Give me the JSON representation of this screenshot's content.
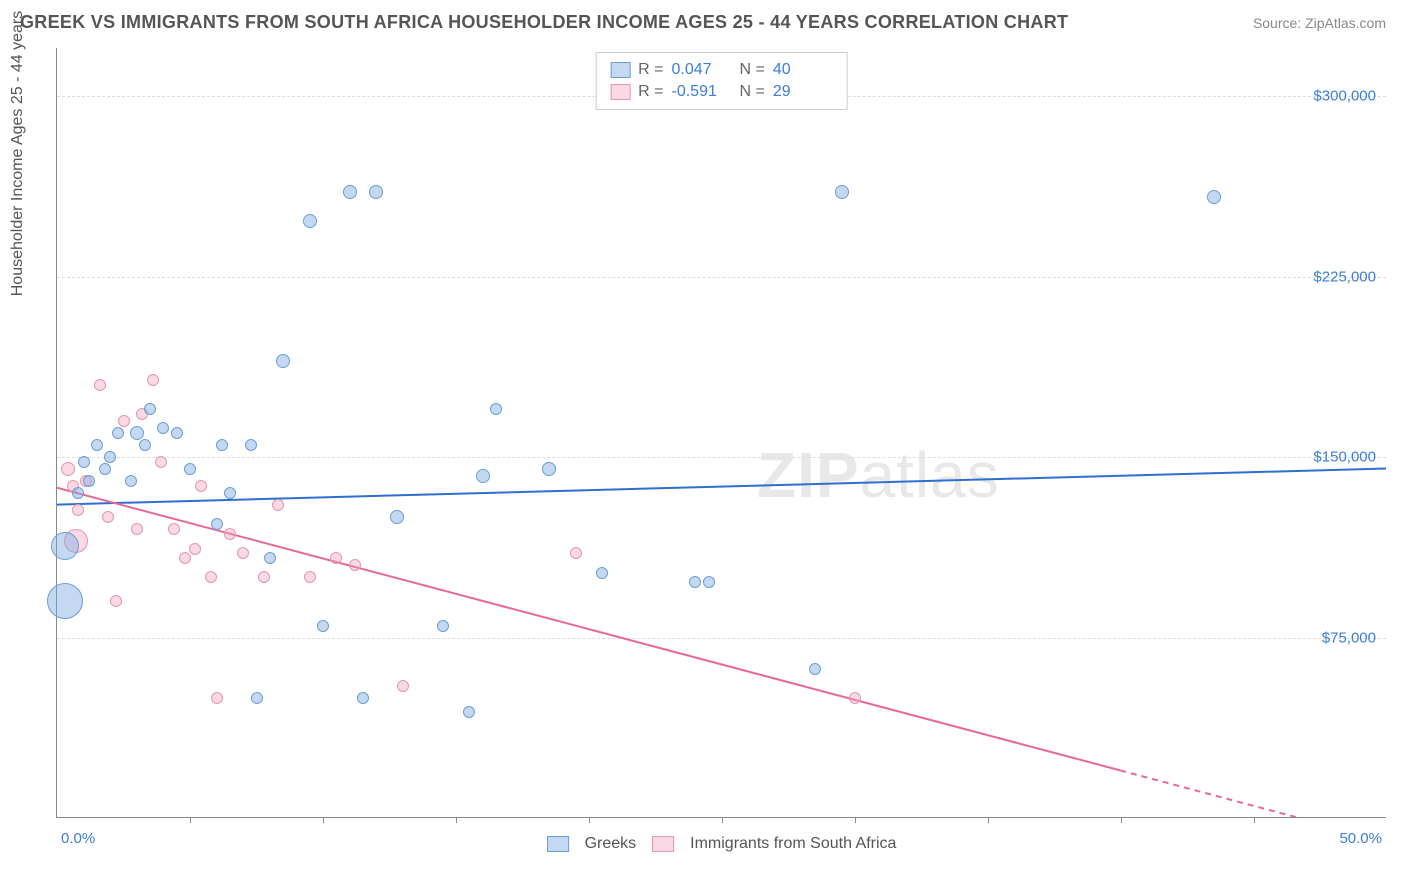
{
  "header": {
    "title": "GREEK VS IMMIGRANTS FROM SOUTH AFRICA HOUSEHOLDER INCOME AGES 25 - 44 YEARS CORRELATION CHART",
    "source": "Source: ZipAtlas.com"
  },
  "chart": {
    "type": "scatter",
    "ylabel": "Householder Income Ages 25 - 44 years",
    "watermark": {
      "bold": "ZIP",
      "rest": "atlas"
    },
    "background_color": "#ffffff",
    "grid_color": "#dddddd",
    "axis_color": "#888888",
    "tick_label_color": "#3b7dd8",
    "xlim": [
      0,
      50
    ],
    "ylim": [
      0,
      320000
    ],
    "y_ticks": [
      {
        "v": 75000,
        "label": "$75,000"
      },
      {
        "v": 150000,
        "label": "$150,000"
      },
      {
        "v": 225000,
        "label": "$225,000"
      },
      {
        "v": 300000,
        "label": "$300,000"
      }
    ],
    "x_axis_labels": {
      "left": "0.0%",
      "right": "50.0%"
    },
    "x_tick_positions": [
      5,
      10,
      15,
      20,
      25,
      30,
      35,
      40,
      45
    ],
    "series": {
      "blue": {
        "name": "Greeks",
        "fill": "rgba(125,170,225,0.45)",
        "stroke": "#6a9fd4",
        "line_color": "#2e6fd1",
        "line_width": 2,
        "R": "0.047",
        "N": "40",
        "trend": {
          "y_at_x0": 130000,
          "y_at_xmax": 145000
        },
        "points": [
          {
            "x": 0.3,
            "y": 90000,
            "r": 18
          },
          {
            "x": 0.3,
            "y": 113000,
            "r": 14
          },
          {
            "x": 0.8,
            "y": 135000,
            "r": 6
          },
          {
            "x": 1.0,
            "y": 148000,
            "r": 6
          },
          {
            "x": 1.2,
            "y": 140000,
            "r": 6
          },
          {
            "x": 1.5,
            "y": 155000,
            "r": 6
          },
          {
            "x": 1.8,
            "y": 145000,
            "r": 6
          },
          {
            "x": 2.0,
            "y": 150000,
            "r": 6
          },
          {
            "x": 2.3,
            "y": 160000,
            "r": 6
          },
          {
            "x": 2.8,
            "y": 140000,
            "r": 6
          },
          {
            "x": 3.0,
            "y": 160000,
            "r": 7
          },
          {
            "x": 3.3,
            "y": 155000,
            "r": 6
          },
          {
            "x": 3.5,
            "y": 170000,
            "r": 6
          },
          {
            "x": 4.0,
            "y": 162000,
            "r": 6
          },
          {
            "x": 4.5,
            "y": 160000,
            "r": 6
          },
          {
            "x": 5.0,
            "y": 145000,
            "r": 6
          },
          {
            "x": 6.0,
            "y": 122000,
            "r": 6
          },
          {
            "x": 6.2,
            "y": 155000,
            "r": 6
          },
          {
            "x": 6.5,
            "y": 135000,
            "r": 6
          },
          {
            "x": 7.3,
            "y": 155000,
            "r": 6
          },
          {
            "x": 7.5,
            "y": 50000,
            "r": 6
          },
          {
            "x": 8.0,
            "y": 108000,
            "r": 6
          },
          {
            "x": 8.5,
            "y": 190000,
            "r": 7
          },
          {
            "x": 9.5,
            "y": 248000,
            "r": 7
          },
          {
            "x": 10.0,
            "y": 80000,
            "r": 6
          },
          {
            "x": 11.0,
            "y": 260000,
            "r": 7
          },
          {
            "x": 11.5,
            "y": 50000,
            "r": 6
          },
          {
            "x": 12.0,
            "y": 260000,
            "r": 7
          },
          {
            "x": 12.8,
            "y": 125000,
            "r": 7
          },
          {
            "x": 14.5,
            "y": 80000,
            "r": 6
          },
          {
            "x": 15.5,
            "y": 44000,
            "r": 6
          },
          {
            "x": 16.0,
            "y": 142000,
            "r": 7
          },
          {
            "x": 16.5,
            "y": 170000,
            "r": 6
          },
          {
            "x": 18.5,
            "y": 145000,
            "r": 7
          },
          {
            "x": 20.5,
            "y": 102000,
            "r": 6
          },
          {
            "x": 24.0,
            "y": 98000,
            "r": 6
          },
          {
            "x": 24.5,
            "y": 98000,
            "r": 6
          },
          {
            "x": 28.5,
            "y": 62000,
            "r": 6
          },
          {
            "x": 29.5,
            "y": 260000,
            "r": 7
          },
          {
            "x": 43.5,
            "y": 258000,
            "r": 7
          }
        ]
      },
      "pink": {
        "name": "Immigrants from South Africa",
        "fill": "rgba(240,160,185,0.40)",
        "stroke": "#e895af",
        "line_color": "#e86a93",
        "line_width": 2,
        "R": "-0.591",
        "N": "29",
        "trend": {
          "y_at_x0": 137000,
          "y_at_xmax": -10000,
          "dash_after_x": 40
        },
        "points": [
          {
            "x": 0.4,
            "y": 145000,
            "r": 7
          },
          {
            "x": 0.6,
            "y": 138000,
            "r": 6
          },
          {
            "x": 0.7,
            "y": 115000,
            "r": 12
          },
          {
            "x": 0.8,
            "y": 128000,
            "r": 6
          },
          {
            "x": 1.1,
            "y": 140000,
            "r": 6
          },
          {
            "x": 1.6,
            "y": 180000,
            "r": 6
          },
          {
            "x": 1.9,
            "y": 125000,
            "r": 6
          },
          {
            "x": 2.2,
            "y": 90000,
            "r": 6
          },
          {
            "x": 2.5,
            "y": 165000,
            "r": 6
          },
          {
            "x": 3.2,
            "y": 168000,
            "r": 6
          },
          {
            "x": 3.0,
            "y": 120000,
            "r": 6
          },
          {
            "x": 3.6,
            "y": 182000,
            "r": 6
          },
          {
            "x": 3.9,
            "y": 148000,
            "r": 6
          },
          {
            "x": 4.4,
            "y": 120000,
            "r": 6
          },
          {
            "x": 4.8,
            "y": 108000,
            "r": 6
          },
          {
            "x": 5.2,
            "y": 112000,
            "r": 6
          },
          {
            "x": 5.4,
            "y": 138000,
            "r": 6
          },
          {
            "x": 5.8,
            "y": 100000,
            "r": 6
          },
          {
            "x": 6.0,
            "y": 50000,
            "r": 6
          },
          {
            "x": 6.5,
            "y": 118000,
            "r": 6
          },
          {
            "x": 7.0,
            "y": 110000,
            "r": 6
          },
          {
            "x": 7.8,
            "y": 100000,
            "r": 6
          },
          {
            "x": 8.3,
            "y": 130000,
            "r": 6
          },
          {
            "x": 9.5,
            "y": 100000,
            "r": 6
          },
          {
            "x": 10.5,
            "y": 108000,
            "r": 6
          },
          {
            "x": 11.2,
            "y": 105000,
            "r": 6
          },
          {
            "x": 13.0,
            "y": 55000,
            "r": 6
          },
          {
            "x": 19.5,
            "y": 110000,
            "r": 6
          },
          {
            "x": 30.0,
            "y": 50000,
            "r": 6
          }
        ]
      }
    },
    "legend_bottom": [
      {
        "key": "blue",
        "label": "Greeks"
      },
      {
        "key": "pink",
        "label": "Immigrants from South Africa"
      }
    ]
  }
}
